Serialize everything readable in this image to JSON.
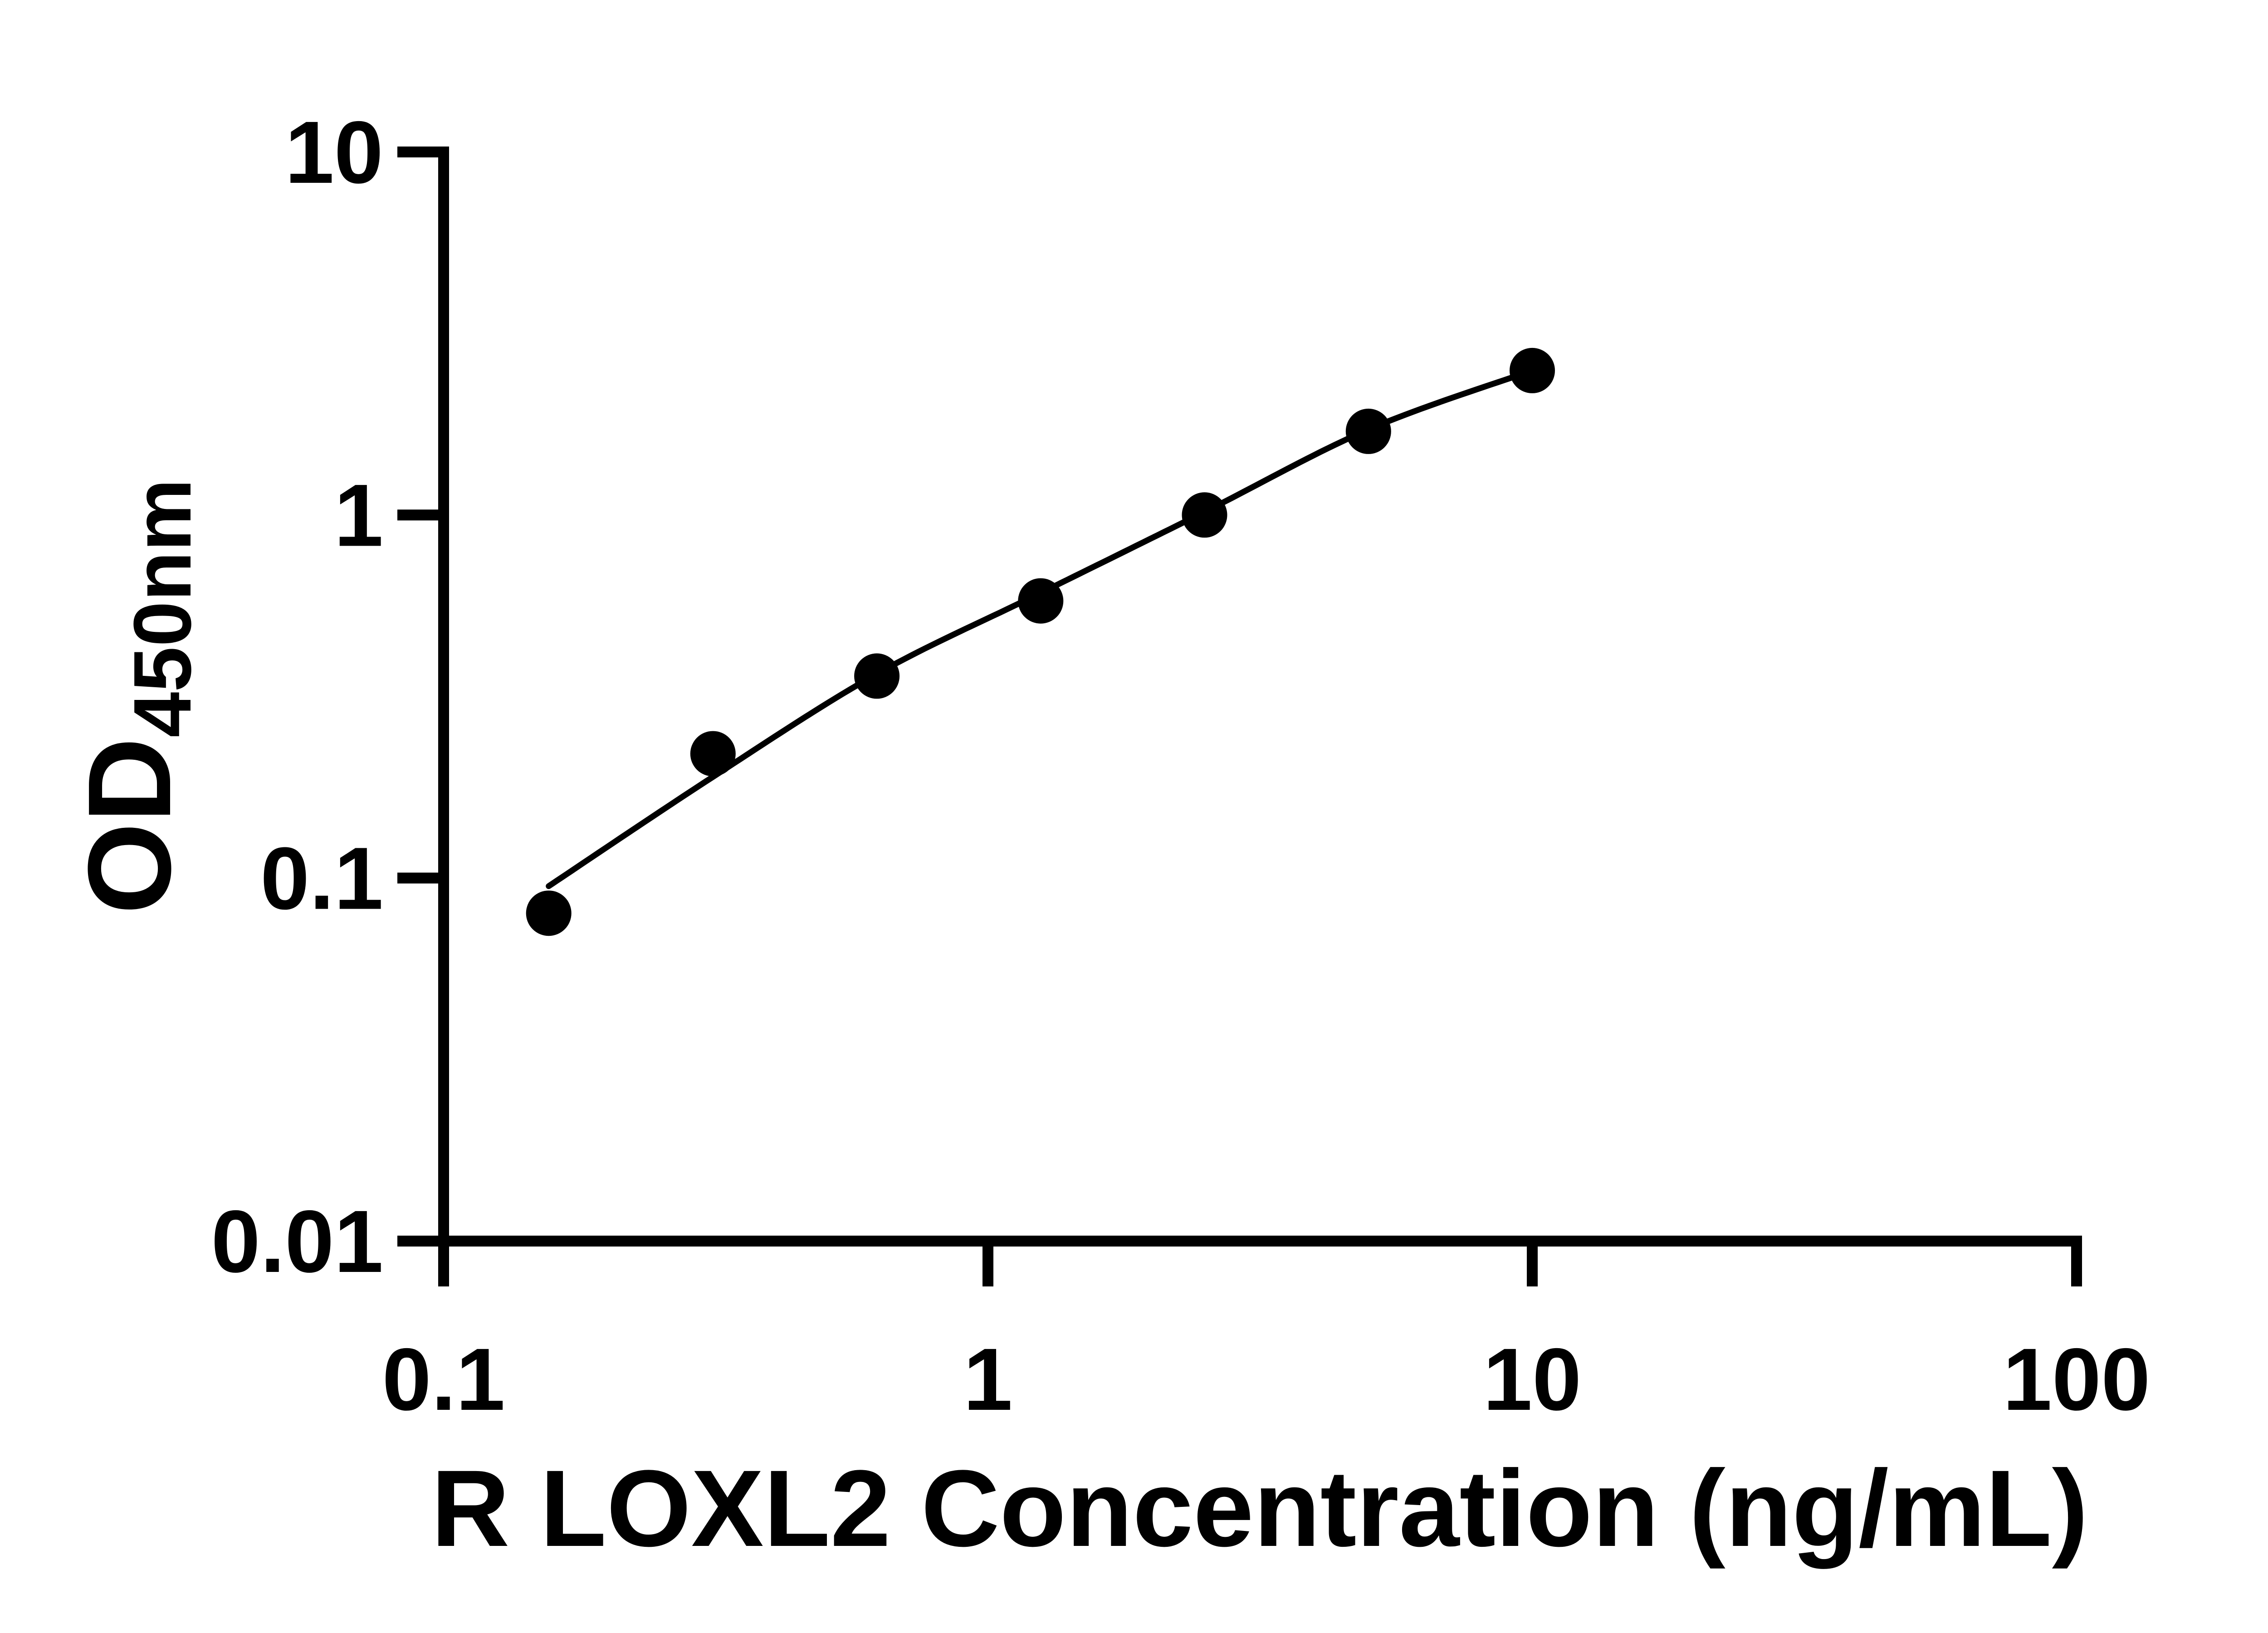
{
  "figure": {
    "background_color": "#ffffff",
    "ink_color": "#000000"
  },
  "chart_data": {
    "type": "scatter",
    "title": "",
    "xlabel": "R LOXL2 Concentration (ng/mL)",
    "ylabel_main": "OD",
    "ylabel_sub": "450nm",
    "x_scale": "log",
    "y_scale": "log",
    "xlim": [
      0.1,
      100
    ],
    "ylim": [
      0.01,
      10
    ],
    "grid": false,
    "legend": "none",
    "x_ticks": [
      {
        "value": 0.1,
        "label": "0.1"
      },
      {
        "value": 1,
        "label": "1"
      },
      {
        "value": 10,
        "label": "10"
      },
      {
        "value": 100,
        "label": "100"
      }
    ],
    "y_ticks": [
      {
        "value": 10,
        "label": "10"
      },
      {
        "value": 1,
        "label": "1"
      },
      {
        "value": 0.1,
        "label": "0.1"
      },
      {
        "value": 0.01,
        "label": "0.01"
      }
    ],
    "series": [
      {
        "name": "standard-points",
        "marker": "circle",
        "color": "#000000",
        "points": [
          {
            "x": 0.156,
            "y": 0.08
          },
          {
            "x": 0.3125,
            "y": 0.22
          },
          {
            "x": 0.625,
            "y": 0.36
          },
          {
            "x": 1.25,
            "y": 0.58
          },
          {
            "x": 2.5,
            "y": 1.0
          },
          {
            "x": 5,
            "y": 1.7
          },
          {
            "x": 10,
            "y": 2.5
          }
        ]
      }
    ],
    "fit_curve": {
      "name": "fitted-standard-curve",
      "color": "#000000",
      "points": [
        {
          "x": 0.156,
          "y": 0.095
        },
        {
          "x": 0.3125,
          "y": 0.19
        },
        {
          "x": 0.625,
          "y": 0.365
        },
        {
          "x": 1.25,
          "y": 0.61
        },
        {
          "x": 2.5,
          "y": 1.02
        },
        {
          "x": 5,
          "y": 1.72
        },
        {
          "x": 10,
          "y": 2.5
        }
      ]
    }
  }
}
